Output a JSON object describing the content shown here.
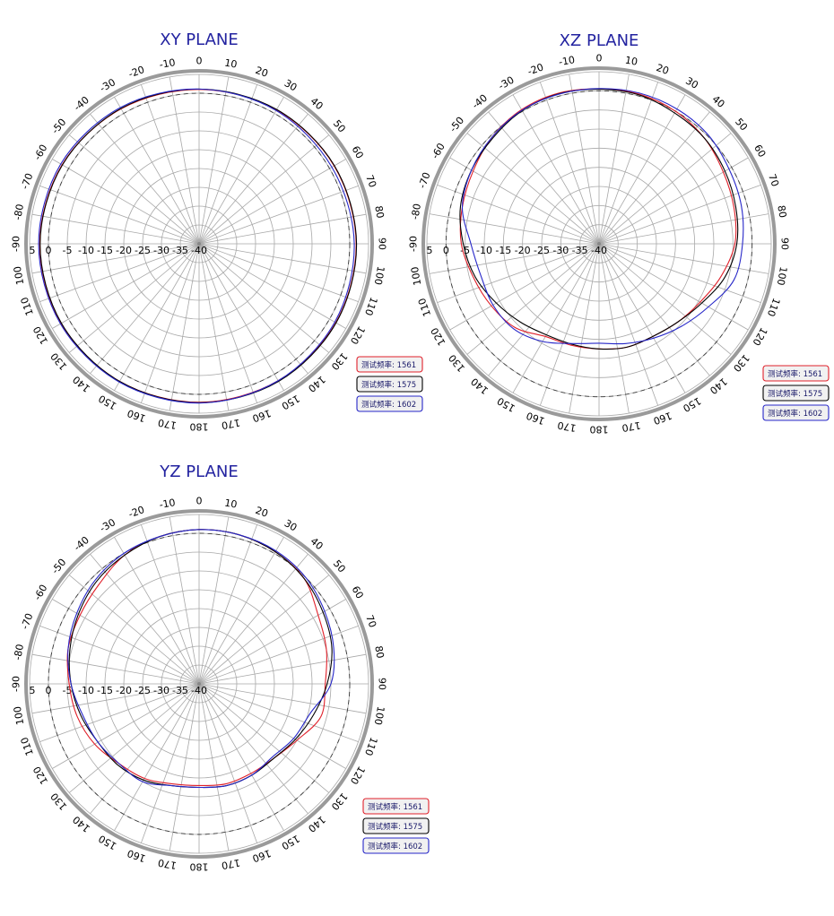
{
  "chart_data": [
    {
      "type": "polar",
      "title": "XY PLANE",
      "angle_ticks": [
        "0",
        "10",
        "20",
        "30",
        "40",
        "50",
        "60",
        "70",
        "80",
        "90",
        "100",
        "110",
        "120",
        "130",
        "140",
        "150",
        "160",
        "170",
        "180",
        "170",
        "160",
        "150",
        "140",
        "130",
        "120",
        "110",
        "100",
        "-90",
        "-80",
        "-70",
        "-60",
        "-50",
        "-40",
        "-30",
        "-20",
        "-10"
      ],
      "radial_ticks": [
        "5",
        "0",
        "-5",
        "-10",
        "-15",
        "-20",
        "-25",
        "-30",
        "-35",
        "-40"
      ],
      "rlim": [
        -40,
        5
      ],
      "reference_circle": 0,
      "angles_deg": [
        0,
        30,
        60,
        90,
        120,
        150,
        180,
        210,
        240,
        270,
        300,
        330
      ],
      "series": [
        {
          "name": "测试频率: 1561",
          "color": "#e0202a",
          "values": [
            1.0,
            1.1,
            1.4,
            1.7,
            1.9,
            2.0,
            2.1,
            2.2,
            2.3,
            2.3,
            2.0,
            1.4
          ]
        },
        {
          "name": "测试频率: 1575",
          "color": "#000000",
          "values": [
            1.1,
            1.2,
            1.5,
            1.8,
            2.0,
            2.2,
            2.2,
            2.2,
            2.2,
            2.2,
            1.9,
            1.5
          ]
        },
        {
          "name": "测试频率: 1602",
          "color": "#2626c8",
          "values": [
            1.1,
            0.9,
            0.7,
            1.2,
            1.6,
            2.0,
            2.3,
            2.4,
            2.5,
            2.6,
            2.4,
            1.8
          ]
        }
      ],
      "legend": [
        "测试频率: 1561",
        "测试频率: 1575",
        "测试频率: 1602"
      ]
    },
    {
      "type": "polar",
      "title": "XZ PLANE",
      "angle_ticks": [
        "0",
        "10",
        "20",
        "30",
        "40",
        "50",
        "60",
        "70",
        "80",
        "90",
        "100",
        "110",
        "120",
        "130",
        "140",
        "150",
        "160",
        "170",
        "180",
        "170",
        "160",
        "150",
        "140",
        "130",
        "120",
        "110",
        "100",
        "-90",
        "-80",
        "-70",
        "-60",
        "-50",
        "-40",
        "-30",
        "-20",
        "-10"
      ],
      "radial_ticks": [
        "5",
        "0",
        "-5",
        "-10",
        "-15",
        "-20",
        "-25",
        "-30",
        "-35",
        "-40"
      ],
      "rlim": [
        -40,
        5
      ],
      "reference_circle": 0,
      "angles_deg": [
        0,
        15,
        30,
        45,
        60,
        75,
        90,
        105,
        120,
        135,
        150,
        165,
        180,
        195,
        210,
        225,
        240,
        255,
        270,
        285,
        300,
        315,
        330,
        345
      ],
      "series": [
        {
          "name": "测试频率: 1561",
          "color": "#e0202a",
          "values": [
            0.5,
            0.5,
            0.0,
            -1.0,
            -2.5,
            -3.5,
            -4.5,
            -7.0,
            -9.5,
            -11.0,
            -12.0,
            -12.0,
            -12.5,
            -12.5,
            -12.0,
            -9.0,
            -7.5,
            -6.0,
            -4.0,
            -3.0,
            -2.0,
            -0.5,
            0.5,
            0.8
          ]
        },
        {
          "name": "测试频率: 1575",
          "color": "#000000",
          "values": [
            0.4,
            0.3,
            -0.5,
            -1.0,
            -2.0,
            -3.0,
            -4.0,
            -6.0,
            -9.0,
            -11.0,
            -12.0,
            -12.0,
            -12.5,
            -12.8,
            -12.5,
            -11.0,
            -9.0,
            -6.5,
            -4.5,
            -2.5,
            -1.5,
            -0.8,
            0.2,
            0.6
          ]
        },
        {
          "name": "测试频率: 1602",
          "color": "#2626c8",
          "values": [
            0.6,
            0.8,
            0.7,
            0.3,
            -0.8,
            -1.5,
            -2.5,
            -3.5,
            -7.0,
            -9.5,
            -11.5,
            -13.0,
            -14.0,
            -13.0,
            -10.5,
            -8.5,
            -8.0,
            -8.0,
            -6.5,
            -3.0,
            -1.5,
            -0.5,
            0.3,
            0.5
          ]
        }
      ],
      "legend": [
        "测试频率: 1561",
        "测试频率: 1575",
        "测试频率: 1602"
      ]
    },
    {
      "type": "polar",
      "title": "YZ PLANE",
      "angle_ticks": [
        "0",
        "10",
        "20",
        "30",
        "40",
        "50",
        "60",
        "70",
        "80",
        "90",
        "100",
        "110",
        "120",
        "130",
        "140",
        "150",
        "160",
        "170",
        "180",
        "170",
        "160",
        "150",
        "140",
        "130",
        "120",
        "110",
        "100",
        "-90",
        "-80",
        "-70",
        "-60",
        "-50",
        "-40",
        "-30",
        "-20",
        "-10"
      ],
      "radial_ticks": [
        "5",
        "0",
        "-5",
        "-10",
        "-15",
        "-20",
        "-25",
        "-30",
        "-35",
        "-40"
      ],
      "rlim": [
        -40,
        5
      ],
      "reference_circle": 0,
      "angles_deg": [
        0,
        15,
        30,
        45,
        60,
        75,
        90,
        105,
        120,
        135,
        150,
        165,
        180,
        195,
        210,
        225,
        240,
        255,
        270,
        285,
        300,
        315,
        330,
        345
      ],
      "series": [
        {
          "name": "测试频率: 1561",
          "color": "#e0202a",
          "values": [
            1.0,
            1.0,
            0.5,
            -0.5,
            -3.5,
            -5.0,
            -6.5,
            -6.5,
            -10.0,
            -12.0,
            -12.5,
            -12.5,
            -13.0,
            -12.5,
            -11.0,
            -10.0,
            -8.0,
            -6.5,
            -5.5,
            -4.0,
            -3.5,
            -2.5,
            -0.5,
            0.5
          ]
        },
        {
          "name": "测试频率: 1575",
          "color": "#000000",
          "values": [
            1.0,
            1.0,
            0.5,
            -0.5,
            -2.0,
            -3.5,
            -6.0,
            -8.5,
            -10.5,
            -12.0,
            -12.0,
            -12.0,
            -12.5,
            -12.0,
            -10.5,
            -9.5,
            -9.0,
            -7.5,
            -6.0,
            -4.5,
            -3.0,
            -1.5,
            -0.5,
            0.5
          ]
        },
        {
          "name": "测试频率: 1602",
          "color": "#2626c8",
          "values": [
            1.0,
            1.0,
            0.8,
            0.0,
            -1.5,
            -3.0,
            -5.0,
            -9.5,
            -11.0,
            -12.5,
            -12.0,
            -12.0,
            -12.5,
            -12.0,
            -10.0,
            -10.0,
            -9.0,
            -8.0,
            -6.0,
            -4.0,
            -2.5,
            -1.0,
            0.0,
            0.5
          ]
        }
      ],
      "legend": [
        "测试频率: 1561",
        "测试频率: 1575",
        "测试频率: 1602"
      ]
    }
  ]
}
